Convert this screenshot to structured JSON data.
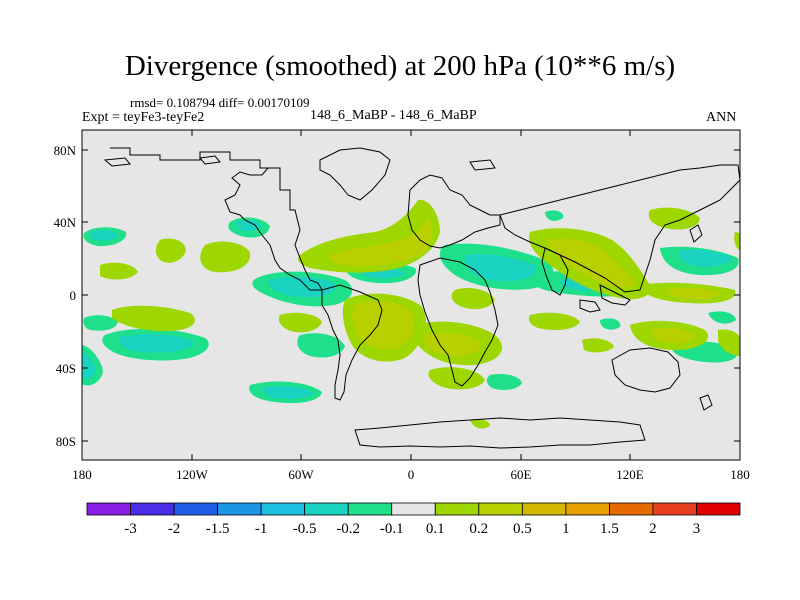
{
  "title": "Divergence (smoothed) at 200 hPa (10**6 m/s)",
  "stats": "rmsd= 0.108794  diff= 0.00170109",
  "experiment": "Expt = teyFe3-teyFe2",
  "case": "148_6_MaBP - 148_6_MaBP",
  "season": "ANN",
  "latitude_labels": [
    "80N",
    "40N",
    "0",
    "40S",
    "80S"
  ],
  "longitude_labels": [
    "180",
    "120W",
    "60W",
    "0",
    "60E",
    "120E",
    "180"
  ],
  "colorbar": {
    "labels": [
      "-3",
      "-2",
      "-1.5",
      "-1",
      "-0.5",
      "-0.2",
      "-0.1",
      "0.1",
      "0.2",
      "0.5",
      "1",
      "1.5",
      "2",
      "3"
    ],
    "colors": [
      "#8a1ee6",
      "#4a2ee6",
      "#1e5fe6",
      "#1c95e6",
      "#1cbfe0",
      "#19d3c0",
      "#1ee08a",
      "#e6e6e6",
      "#9ed600",
      "#b9d000",
      "#d2b800",
      "#e6a000",
      "#e66a00",
      "#e64020",
      "#e00000"
    ]
  },
  "chart_data": {
    "type": "map",
    "variable": "Divergence (smoothed)",
    "level": "200 hPa",
    "units": "10**6 m/s",
    "levels": [
      -3,
      -2,
      -1.5,
      -1,
      -0.5,
      -0.2,
      -0.1,
      0.1,
      0.2,
      0.5,
      1,
      1.5,
      2,
      3
    ],
    "x_range_deg": [
      -180,
      180
    ],
    "y_range_deg": [
      -90,
      90
    ],
    "features": [
      {
        "name": "maritime-continent-convergence-band",
        "sign": "negative",
        "level": -0.5
      },
      {
        "name": "south-america-divergence",
        "sign": "positive",
        "level": 0.5
      },
      {
        "name": "africa-divergence",
        "sign": "positive",
        "level": 0.5
      },
      {
        "name": "asian-monsoon-divergence",
        "sign": "positive",
        "level": 0.5
      },
      {
        "name": "southern-ocean-convergence",
        "sign": "negative",
        "level": -0.2
      }
    ]
  }
}
